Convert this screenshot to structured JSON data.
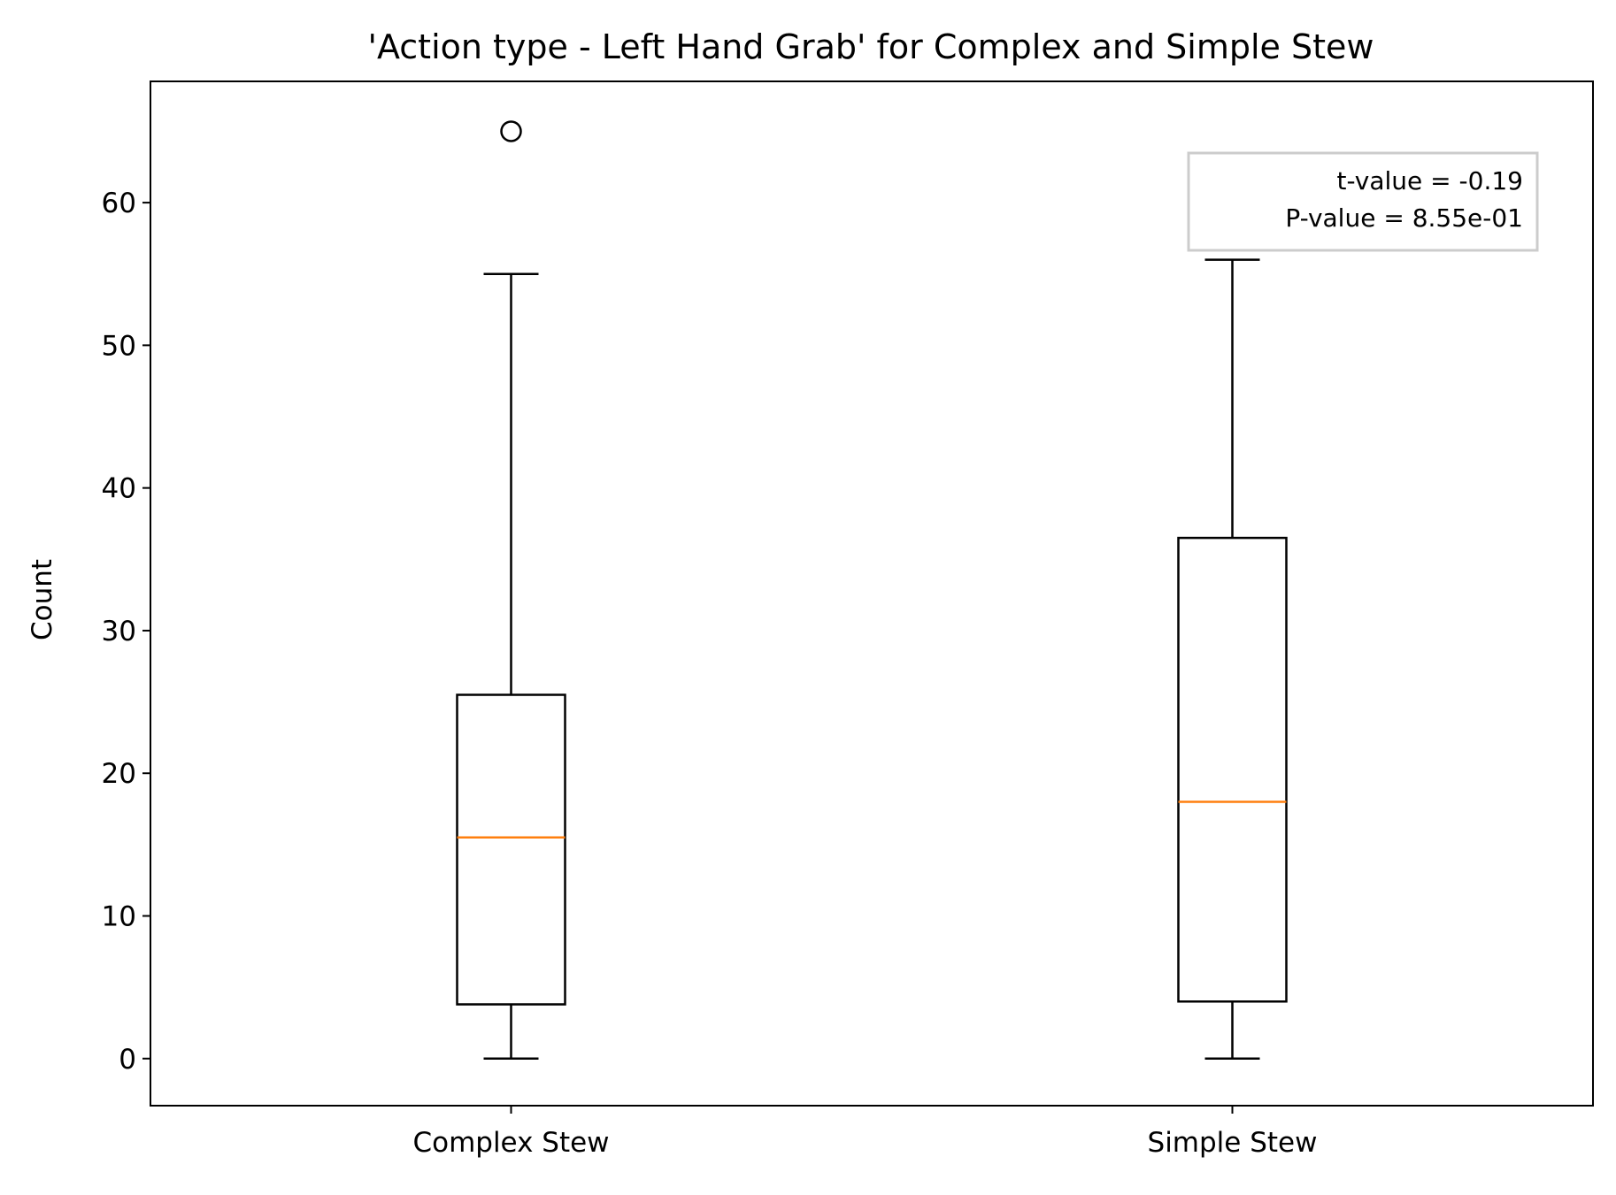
{
  "chart_data": {
    "type": "box",
    "title": "'Action type - Left Hand Grab' for Complex and Simple Stew",
    "xlabel": "",
    "ylabel": "Count",
    "ylim": [
      -3.3,
      68.5
    ],
    "yticks": [
      0,
      10,
      20,
      30,
      40,
      50,
      60
    ],
    "categories": [
      "Complex Stew",
      "Simple Stew"
    ],
    "boxes": [
      {
        "category": "Complex Stew",
        "whisker_low": 0,
        "q1": 3.8,
        "median": 15.5,
        "q3": 25.5,
        "whisker_high": 55,
        "outliers": [
          65
        ]
      },
      {
        "category": "Simple Stew",
        "whisker_low": 0,
        "q1": 4,
        "median": 18,
        "q3": 36.5,
        "whisker_high": 56,
        "outliers": []
      }
    ],
    "annotation": {
      "lines": [
        "t-value = -0.19",
        "P-value = 8.55e-01"
      ],
      "placement": "top-right"
    },
    "grid": false,
    "colors": {
      "box": "#000000",
      "median": "#ff7f0e",
      "annotation_border": "#cccccc"
    }
  }
}
